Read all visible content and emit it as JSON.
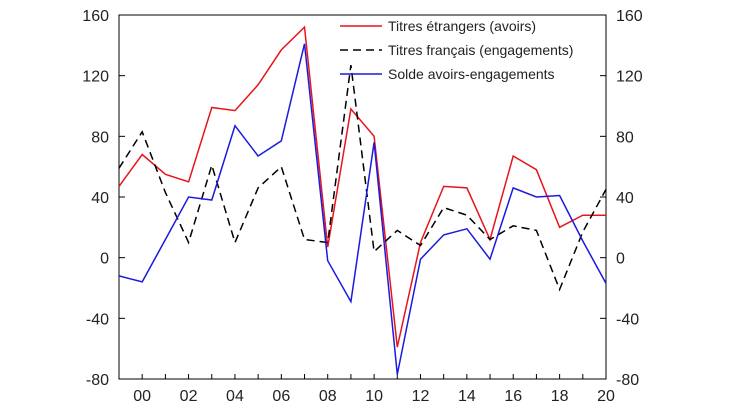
{
  "chart_data": {
    "type": "line",
    "x": [
      1999,
      2000,
      2001,
      2002,
      2003,
      2004,
      2005,
      2006,
      2007,
      2008,
      2009,
      2010,
      2011,
      2012,
      2013,
      2014,
      2015,
      2016,
      2017,
      2018,
      2019,
      2020
    ],
    "x_tick_labels": [
      "00",
      "02",
      "04",
      "06",
      "08",
      "10",
      "12",
      "14",
      "16",
      "18",
      "20"
    ],
    "x_tick_values": [
      2000,
      2002,
      2004,
      2006,
      2008,
      2010,
      2012,
      2014,
      2016,
      2018,
      2020
    ],
    "xlim": [
      1999,
      2020
    ],
    "ylim": [
      -80,
      160
    ],
    "y_ticks": [
      -80,
      -40,
      0,
      40,
      80,
      120,
      160
    ],
    "y_tick_labels": [
      "-80",
      "-40",
      "0",
      "40",
      "80",
      "120",
      "160"
    ],
    "right_axis_duplicate": true,
    "grid": false,
    "legend_position": "top-right",
    "series": [
      {
        "name": "Titres étrangers (avoirs)",
        "color": "#e8141c",
        "dash": "solid",
        "values": [
          47,
          68,
          55,
          50,
          99,
          97,
          114,
          137,
          152,
          7,
          98,
          80,
          -59,
          10,
          47,
          46,
          12,
          67,
          58,
          20,
          28,
          28
        ]
      },
      {
        "name": "Titres français (engagements)",
        "color": "#000000",
        "dash": "dashed",
        "values": [
          59,
          83,
          43,
          10,
          61,
          10,
          46,
          60,
          12,
          10,
          127,
          4,
          18,
          8,
          33,
          28,
          12,
          21,
          18,
          -21,
          17,
          45
        ]
      },
      {
        "name": "Solde avoirs-engagements",
        "color": "#1a1ae0",
        "dash": "solid",
        "values": [
          -12,
          -16,
          12,
          40,
          38,
          87,
          67,
          77,
          141,
          -2,
          -29,
          76,
          -77,
          -1,
          15,
          19,
          -1,
          46,
          40,
          41,
          11,
          -17
        ]
      }
    ]
  }
}
